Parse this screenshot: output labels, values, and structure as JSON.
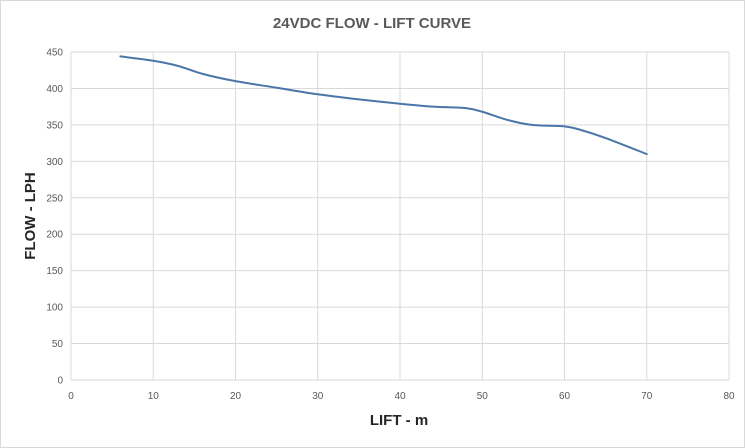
{
  "chart_data": {
    "type": "line",
    "title": "24VDC FLOW - LIFT CURVE",
    "xlabel": "LIFT - m",
    "ylabel": "FLOW - LPH",
    "xlim": [
      0,
      80
    ],
    "ylim": [
      0,
      450
    ],
    "x_ticks": [
      0,
      10,
      20,
      30,
      40,
      50,
      60,
      70,
      80
    ],
    "y_ticks": [
      0,
      50,
      100,
      150,
      200,
      250,
      300,
      350,
      400,
      450
    ],
    "grid": true,
    "legend": "none",
    "colors": {
      "series": "#4a76a8",
      "grid": "#d9d9d9"
    },
    "series": [
      {
        "x": [
          6,
          10,
          13,
          16,
          20,
          25,
          30,
          35,
          40,
          44,
          48,
          50,
          53,
          56,
          60,
          62,
          65,
          70
        ],
        "y": [
          444,
          438,
          431,
          420,
          410,
          401,
          392,
          385,
          379,
          375,
          373,
          368,
          357,
          350,
          348,
          343,
          332,
          310
        ]
      }
    ]
  }
}
